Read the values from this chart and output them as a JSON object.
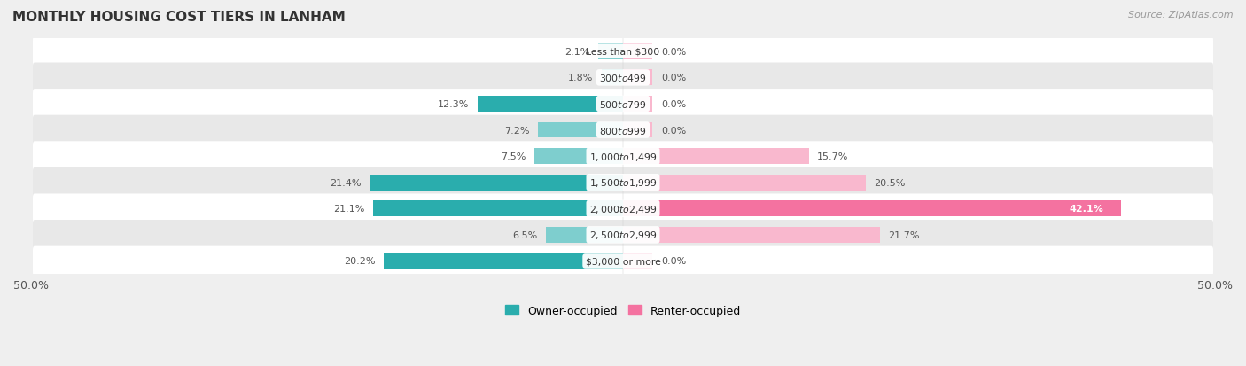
{
  "title": "MONTHLY HOUSING COST TIERS IN LANHAM",
  "source": "Source: ZipAtlas.com",
  "categories": [
    "Less than $300",
    "$300 to $499",
    "$500 to $799",
    "$800 to $999",
    "$1,000 to $1,499",
    "$1,500 to $1,999",
    "$2,000 to $2,499",
    "$2,500 to $2,999",
    "$3,000 or more"
  ],
  "owner_values": [
    2.1,
    1.8,
    12.3,
    7.2,
    7.5,
    21.4,
    21.1,
    6.5,
    20.2
  ],
  "renter_values": [
    0.0,
    0.0,
    0.0,
    0.0,
    15.7,
    20.5,
    42.1,
    21.7,
    0.0
  ],
  "owner_color_light": "#7ecece",
  "owner_color_dark": "#2aadad",
  "renter_color_light": "#f9b8ce",
  "renter_color_dark": "#f472a0",
  "renter_stub_color": "#f9b8ce",
  "background_color": "#efefef",
  "row_colors": [
    "#ffffff",
    "#e8e8e8"
  ],
  "axis_limit": 50.0,
  "legend_owner": "Owner-occupied",
  "legend_renter": "Renter-occupied",
  "stub_value": 2.5,
  "owner_dark_threshold": 10.0,
  "renter_dark_threshold": 30.0
}
